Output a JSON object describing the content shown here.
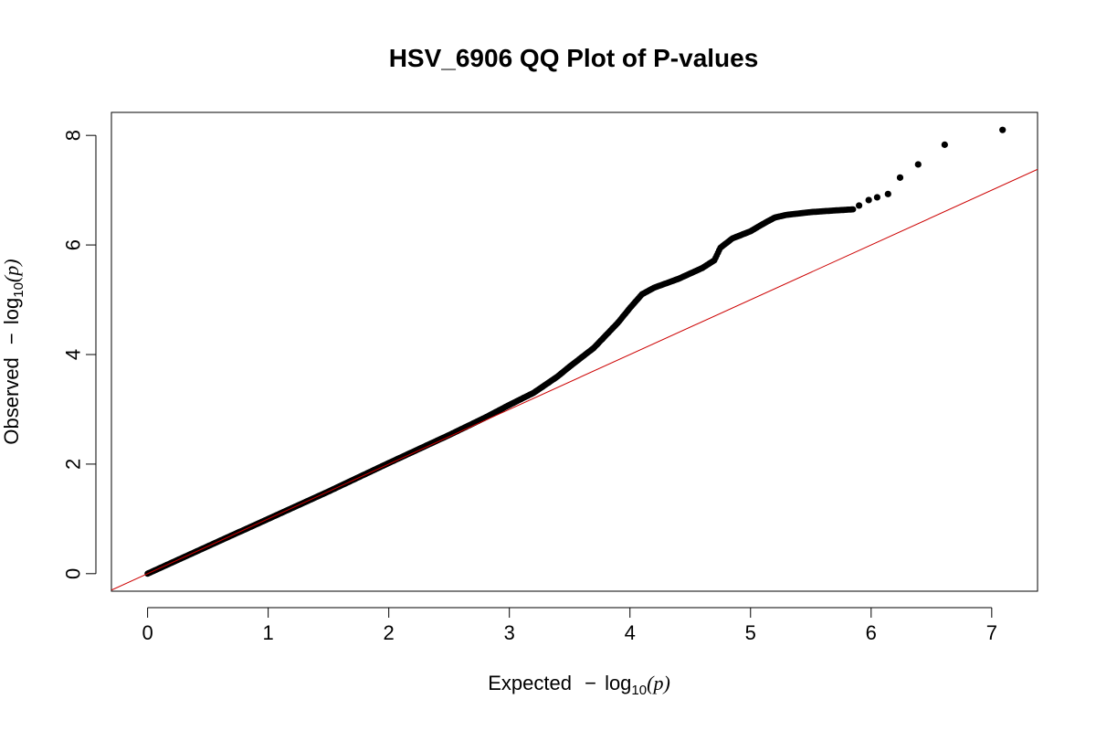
{
  "chart_data": {
    "type": "scatter",
    "title": "HSV_6906 QQ Plot of P-values",
    "xlabel": {
      "prefix": "Expected",
      "minus": "−",
      "log": "log",
      "sub": "10",
      "open": "(",
      "var": "p",
      "close": ")"
    },
    "ylabel": {
      "prefix": "Observed",
      "minus": "−",
      "log": "log",
      "sub": "10",
      "open": "(",
      "var": "p",
      "close": ")"
    },
    "xlim": [
      -0.3,
      7.38
    ],
    "ylim": [
      -0.32,
      8.42
    ],
    "x_ticks": [
      0,
      1,
      2,
      3,
      4,
      5,
      6,
      7
    ],
    "x_tick_labels": [
      "0",
      "1",
      "2",
      "3",
      "4",
      "5",
      "6",
      "7"
    ],
    "y_ticks": [
      0,
      2,
      4,
      6,
      8
    ],
    "y_tick_labels": [
      "0",
      "2",
      "4",
      "6",
      "8"
    ],
    "point_color": "#000000",
    "reference_line": {
      "slope": 1,
      "intercept": 0,
      "color": "#cc0000"
    },
    "curve": [
      [
        0.0,
        0.0
      ],
      [
        0.5,
        0.5
      ],
      [
        1.0,
        1.0
      ],
      [
        1.5,
        1.5
      ],
      [
        2.0,
        2.02
      ],
      [
        2.5,
        2.53
      ],
      [
        2.8,
        2.85
      ],
      [
        3.0,
        3.08
      ],
      [
        3.2,
        3.3
      ],
      [
        3.4,
        3.6
      ],
      [
        3.5,
        3.78
      ],
      [
        3.6,
        3.95
      ],
      [
        3.7,
        4.12
      ],
      [
        3.8,
        4.35
      ],
      [
        3.9,
        4.58
      ],
      [
        4.0,
        4.85
      ],
      [
        4.1,
        5.1
      ],
      [
        4.2,
        5.22
      ],
      [
        4.3,
        5.3
      ],
      [
        4.4,
        5.38
      ],
      [
        4.5,
        5.48
      ],
      [
        4.6,
        5.58
      ],
      [
        4.7,
        5.72
      ],
      [
        4.75,
        5.95
      ],
      [
        4.85,
        6.12
      ],
      [
        5.0,
        6.25
      ],
      [
        5.1,
        6.38
      ],
      [
        5.2,
        6.5
      ],
      [
        5.3,
        6.55
      ],
      [
        5.5,
        6.6
      ],
      [
        5.7,
        6.63
      ],
      [
        5.85,
        6.65
      ]
    ],
    "tail_points": [
      [
        5.9,
        6.72
      ],
      [
        5.98,
        6.82
      ],
      [
        6.05,
        6.87
      ],
      [
        6.14,
        6.93
      ],
      [
        6.24,
        7.23
      ],
      [
        6.39,
        7.47
      ],
      [
        6.61,
        7.83
      ],
      [
        7.09,
        8.1
      ]
    ]
  }
}
